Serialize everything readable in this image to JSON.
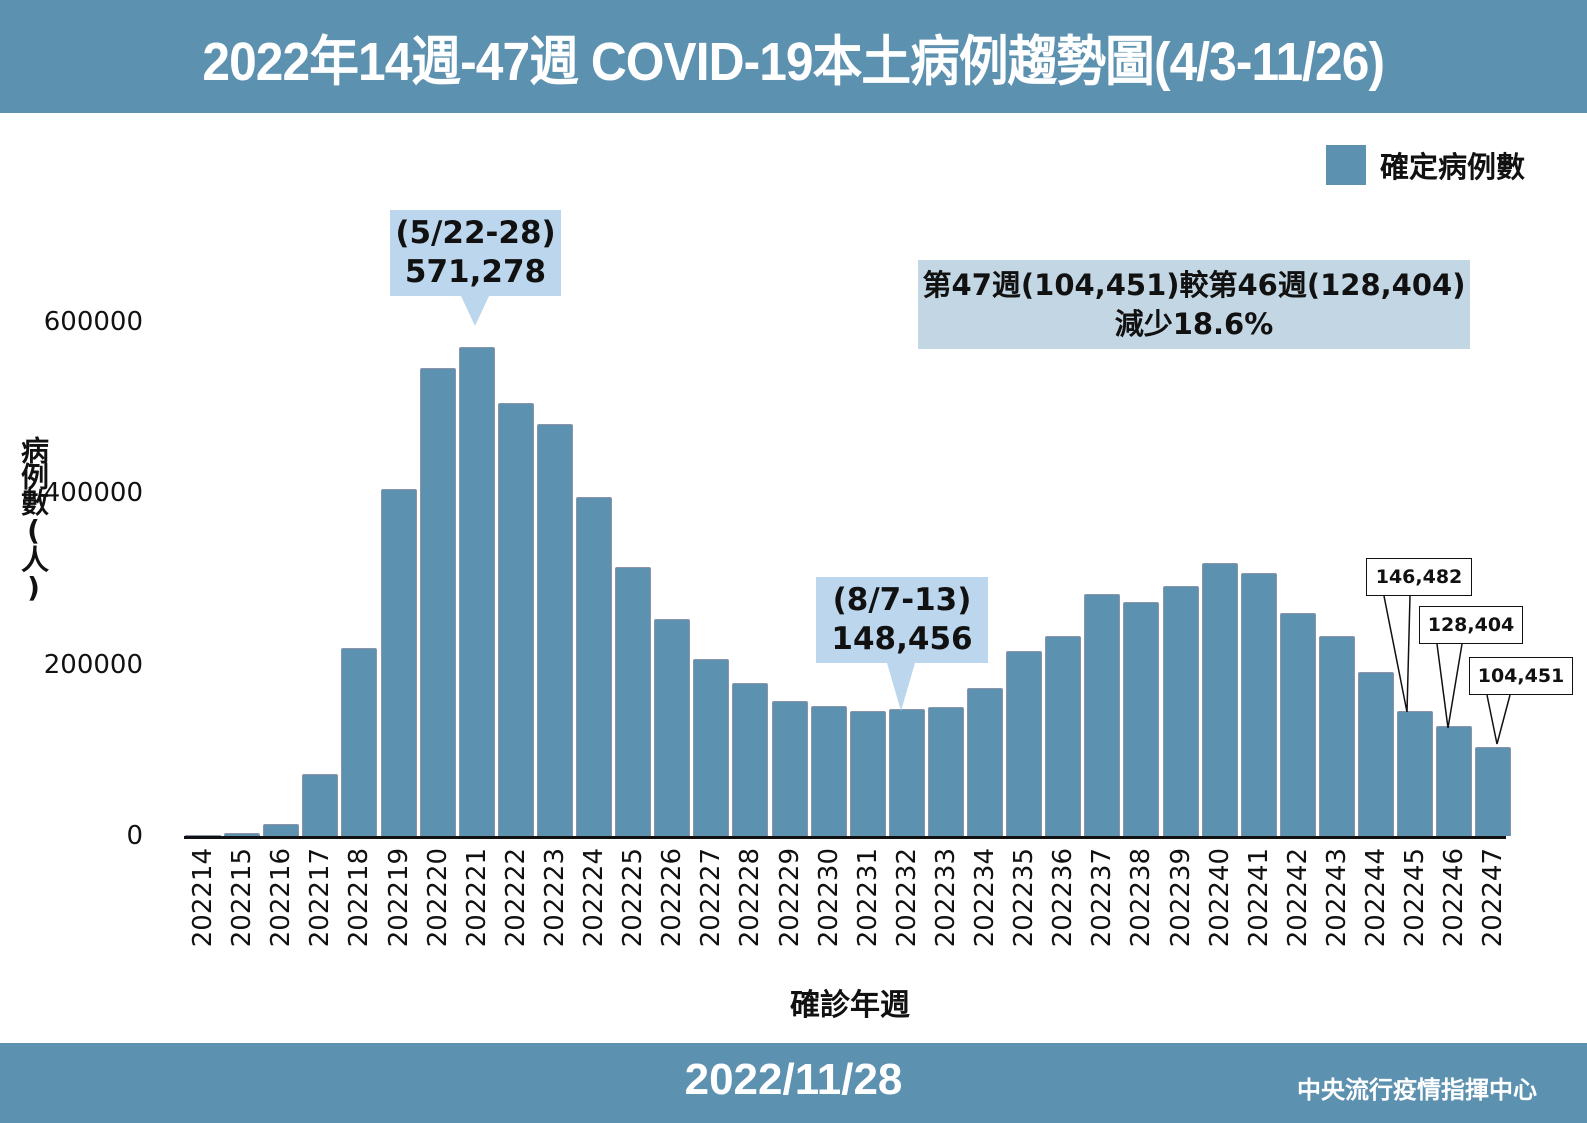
{
  "header": {
    "title": "2022年14週-47週 COVID-19本土病例趨勢圖(4/3-11/26)"
  },
  "legend": {
    "label": "確定病例數",
    "color": "#5d91b0"
  },
  "footer": {
    "date": "2022/11/28",
    "org": "中央流行疫情指揮中心"
  },
  "annotations": {
    "peak": {
      "period": "(5/22-28)",
      "value": "571,278"
    },
    "trough": {
      "period": "(8/7-13)",
      "value": "148,456"
    },
    "note_line1": "第47週(104,451)較第46週(128,404)",
    "note_line2": "減少18.6%",
    "w45": "146,482",
    "w46": "128,404",
    "w47": "104,451"
  },
  "chart_data": {
    "type": "bar",
    "title": "2022年14週-47週 COVID-19本土病例趨勢圖(4/3-11/26)",
    "xlabel": "確診年週",
    "ylabel": "病例數(人)",
    "ylim": [
      0,
      600000
    ],
    "yticks": [
      "0",
      "200000",
      "400000",
      "600000"
    ],
    "legend": [
      "確定病例數"
    ],
    "legend_position": "top-right",
    "grid": false,
    "categories": [
      "202214",
      "202215",
      "202216",
      "202217",
      "202218",
      "202219",
      "202220",
      "202221",
      "202222",
      "202223",
      "202224",
      "202225",
      "202226",
      "202227",
      "202228",
      "202229",
      "202230",
      "202231",
      "202232",
      "202233",
      "202234",
      "202235",
      "202236",
      "202237",
      "202238",
      "202239",
      "202240",
      "202241",
      "202242",
      "202243",
      "202244",
      "202245",
      "202246",
      "202247"
    ],
    "series": [
      {
        "name": "確定病例數",
        "values": [
          300,
          4000,
          14000,
          72000,
          219000,
          405000,
          546000,
          571278,
          505000,
          481000,
          396000,
          314000,
          253000,
          207000,
          179000,
          158000,
          152000,
          146000,
          148456,
          151000,
          173000,
          216000,
          233000,
          282000,
          273000,
          292000,
          319000,
          307000,
          260000,
          233000,
          191000,
          146482,
          128404,
          104451
        ]
      }
    ]
  }
}
